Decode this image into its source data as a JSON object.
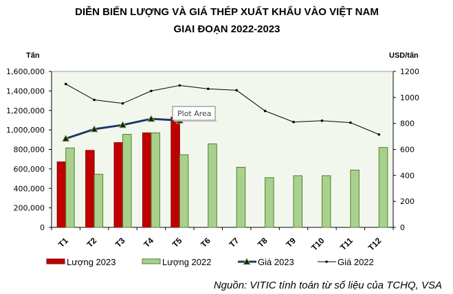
{
  "chart_data": {
    "type": "bar",
    "title": [
      "DIỄN BIẾN LƯỢNG VÀ GIÁ THÉP XUẤT KHẨU VÀO VIỆT NAM",
      "GIAI ĐOẠN 2022-2023"
    ],
    "ylabel_left": "Tấn",
    "ylabel_right": "USD/tấn",
    "categories": [
      "T1",
      "T2",
      "T3",
      "T4",
      "T5",
      "T6",
      "T7",
      "T8",
      "T9",
      "T10",
      "T11",
      "T12"
    ],
    "ylim_left": [
      0,
      1600000
    ],
    "yticks_left": [
      "0",
      "200,000",
      "400,000",
      "600,000",
      "800,000",
      "1,000,000",
      "1,200,000",
      "1,400,000",
      "1,600,000"
    ],
    "ylim_right": [
      0,
      1200
    ],
    "yticks_right": [
      "0",
      "200",
      "400",
      "600",
      "800",
      "1000",
      "1200"
    ],
    "series": [
      {
        "name": "Lượng 2023",
        "type": "bar",
        "axis": "left",
        "color": "#c00000",
        "values": [
          672000,
          790000,
          870000,
          970000,
          1130000,
          null,
          null,
          null,
          null,
          null,
          null,
          null
        ]
      },
      {
        "name": "Lượng 2022",
        "type": "bar",
        "axis": "left",
        "color": "#a9d18e",
        "values": [
          815000,
          545000,
          955000,
          970000,
          745000,
          857000,
          617000,
          510000,
          530000,
          530000,
          588000,
          820000
        ]
      },
      {
        "name": "Giá 2023",
        "type": "line",
        "axis": "right",
        "color": "#1f3864",
        "values": [
          683,
          756,
          788,
          835,
          823,
          null,
          null,
          null,
          null,
          null,
          null,
          null
        ]
      },
      {
        "name": "Giá 2022",
        "type": "line",
        "axis": "right",
        "color": "#000000",
        "values": [
          1103,
          981,
          954,
          1050,
          1092,
          1066,
          1055,
          896,
          811,
          821,
          806,
          715
        ]
      }
    ],
    "legend_position": "bottom",
    "grid": false,
    "tooltip": "Plot Area",
    "source": "Nguồn: VITIC tính toán từ số liệu của TCHQ, VSA"
  }
}
